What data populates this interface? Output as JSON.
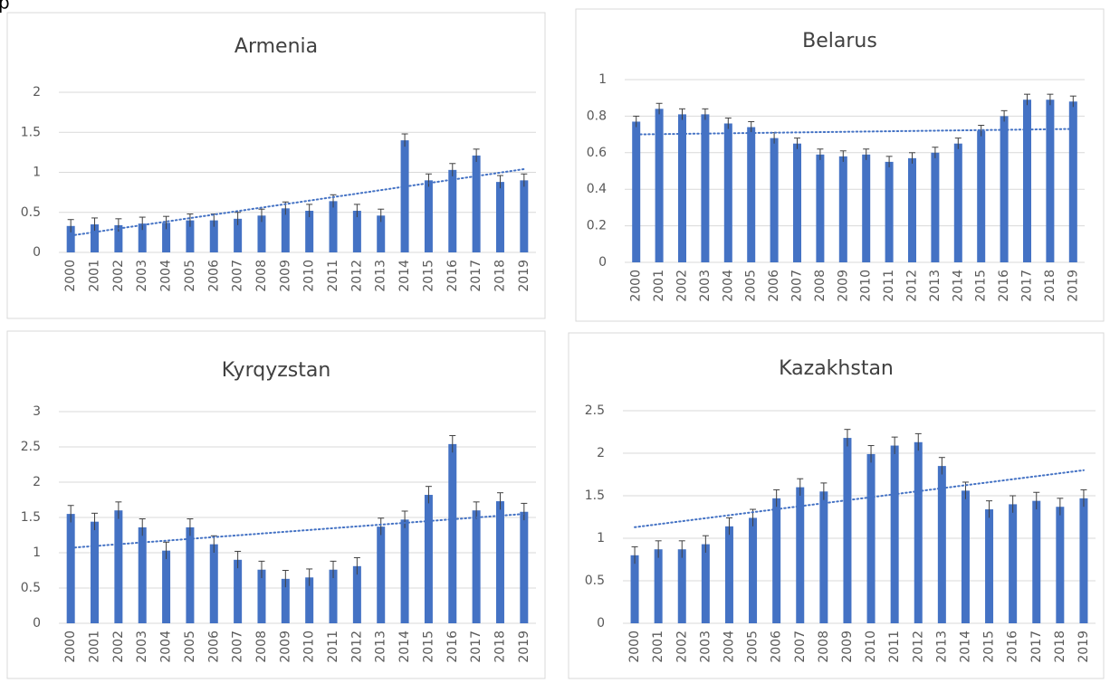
{
  "page_fragment": "p",
  "chart_data": [
    {
      "type": "bar",
      "title": "Armenia",
      "categories": [
        "2000",
        "2001",
        "2002",
        "2003",
        "2004",
        "2005",
        "2006",
        "2007",
        "2008",
        "2009",
        "2010",
        "2011",
        "2012",
        "2013",
        "2014",
        "2015",
        "2016",
        "2017",
        "2018",
        "2019"
      ],
      "series": [
        {
          "color": "#4472c4",
          "error": 0.08,
          "values": [
            0.33,
            0.35,
            0.34,
            0.36,
            0.37,
            0.4,
            0.4,
            0.42,
            0.46,
            0.55,
            0.52,
            0.64,
            0.52,
            0.46,
            1.4,
            0.9,
            1.03,
            1.21,
            0.88,
            0.9
          ]
        }
      ],
      "trendline": {
        "start": 0.21,
        "end": 1.04,
        "color": "#4472c4"
      },
      "ylim": [
        0,
        2
      ],
      "yticks": [
        0,
        0.5,
        1,
        1.5,
        2
      ],
      "grid": true
    },
    {
      "type": "bar",
      "title": "Belarus",
      "categories": [
        "2000",
        "2001",
        "2002",
        "2003",
        "2004",
        "2005",
        "2006",
        "2007",
        "2008",
        "2009",
        "2010",
        "2011",
        "2012",
        "2013",
        "2014",
        "2015",
        "2016",
        "2017",
        "2018",
        "2019"
      ],
      "series": [
        {
          "color": "#4472c4",
          "error": 0.03,
          "values": [
            0.77,
            0.84,
            0.81,
            0.81,
            0.76,
            0.74,
            0.68,
            0.65,
            0.59,
            0.58,
            0.59,
            0.55,
            0.57,
            0.6,
            0.65,
            0.72,
            0.8,
            0.89,
            0.89,
            0.88
          ]
        }
      ],
      "trendline": {
        "start": 0.7,
        "end": 0.73,
        "color": "#4472c4"
      },
      "ylim": [
        0,
        1
      ],
      "yticks": [
        0,
        0.2,
        0.4,
        0.6,
        0.8,
        1
      ],
      "grid": true
    },
    {
      "type": "bar",
      "title": "Kyrqyzstan",
      "categories": [
        "2000",
        "2001",
        "2002",
        "2003",
        "2004",
        "2005",
        "2006",
        "2007",
        "2008",
        "2009",
        "2010",
        "2011",
        "2012",
        "2013",
        "2014",
        "2015",
        "2016",
        "2017",
        "2018",
        "2019"
      ],
      "series": [
        {
          "color": "#4472c4",
          "error": 0.12,
          "values": [
            1.55,
            1.44,
            1.6,
            1.36,
            1.03,
            1.36,
            1.12,
            0.9,
            0.76,
            0.63,
            0.65,
            0.76,
            0.81,
            1.37,
            1.47,
            1.82,
            2.54,
            1.6,
            1.73,
            1.58
          ]
        }
      ],
      "trendline": {
        "start": 1.07,
        "end": 1.55,
        "color": "#4472c4"
      },
      "ylim": [
        0,
        3
      ],
      "yticks": [
        0,
        0.5,
        1,
        1.5,
        2,
        2.5,
        3
      ],
      "grid": true
    },
    {
      "type": "bar",
      "title": "Kazakhstan",
      "categories": [
        "2000",
        "2001",
        "2002",
        "2003",
        "2004",
        "2005",
        "2006",
        "2007",
        "2008",
        "2009",
        "2010",
        "2011",
        "2012",
        "2013",
        "2014",
        "2015",
        "2016",
        "2017",
        "2018",
        "2019"
      ],
      "series": [
        {
          "color": "#4472c4",
          "error": 0.1,
          "values": [
            0.8,
            0.87,
            0.87,
            0.93,
            1.14,
            1.24,
            1.47,
            1.6,
            1.55,
            2.18,
            1.99,
            2.09,
            2.13,
            1.85,
            1.56,
            1.34,
            1.4,
            1.44,
            1.37,
            1.47
          ]
        }
      ],
      "trendline": {
        "start": 1.13,
        "end": 1.8,
        "color": "#4472c4"
      },
      "ylim": [
        0,
        2.5
      ],
      "yticks": [
        0,
        0.5,
        1,
        1.5,
        2,
        2.5
      ],
      "grid": true
    }
  ]
}
